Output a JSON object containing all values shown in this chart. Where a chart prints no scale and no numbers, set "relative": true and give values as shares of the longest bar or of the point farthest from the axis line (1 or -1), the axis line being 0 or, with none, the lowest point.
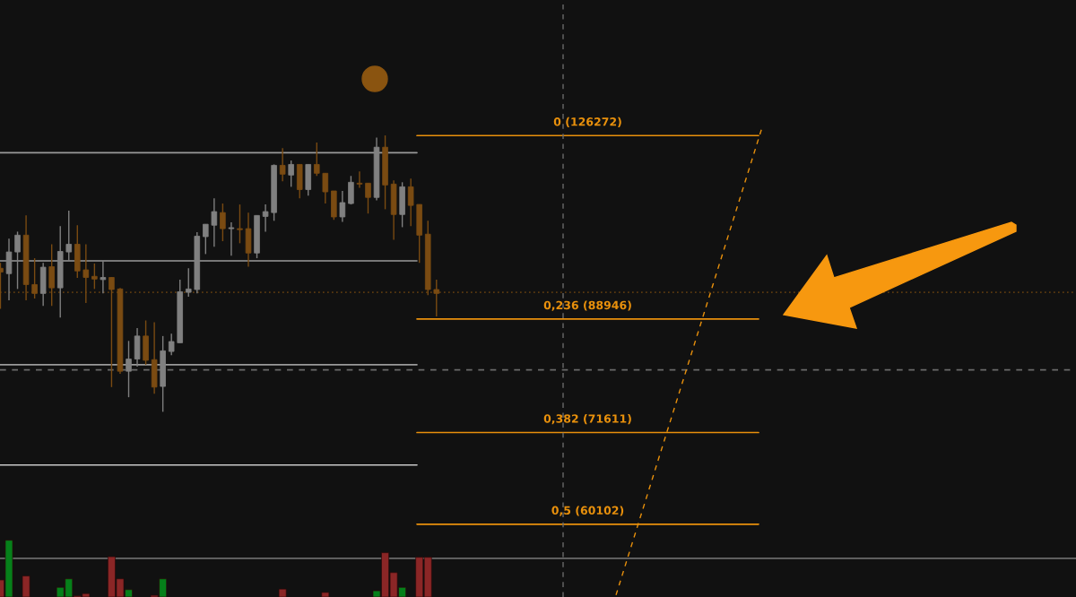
{
  "chart_data": [
    {
      "type": "candlestick",
      "log": true,
      "tick_labels": false,
      "grid": false,
      "ylim": [
        52300,
        163600
      ],
      "categories": [
        null,
        null,
        null,
        null,
        null,
        null,
        null,
        null,
        null,
        null,
        null,
        null,
        null,
        null,
        null,
        null,
        null,
        null,
        null,
        null,
        null,
        null,
        null,
        null,
        null,
        null,
        null,
        null,
        null,
        null,
        null,
        null,
        null,
        null,
        null,
        null,
        null,
        null,
        null,
        null,
        null,
        null,
        null,
        null,
        null,
        null,
        null,
        null,
        null,
        null,
        null,
        null,
        null,
        null,
        null,
        null,
        null,
        null,
        null,
        null,
        null,
        null,
        null,
        null,
        null,
        null,
        null,
        null,
        null,
        null,
        null,
        null,
        null,
        null,
        null,
        null,
        null,
        null,
        null,
        null,
        null,
        null,
        null,
        null,
        null,
        null,
        null,
        null,
        null,
        null,
        null,
        null,
        null,
        null,
        null,
        null,
        null,
        null,
        null,
        null,
        null,
        null,
        null,
        null,
        null,
        null,
        null,
        null,
        null,
        null,
        null,
        null,
        null,
        null,
        null,
        null,
        null,
        null,
        null,
        null,
        null,
        null,
        null,
        null,
        null,
        null
      ],
      "ohlc": [
        [
          98000,
          99000,
          90700,
          97300
        ],
        [
          97000,
          103700,
          92200,
          101100
        ],
        [
          101100,
          105100,
          94200,
          104400
        ],
        [
          104400,
          108400,
          92200,
          95000
        ],
        [
          95000,
          99900,
          92500,
          93400
        ],
        [
          93400,
          99000,
          91200,
          98200
        ],
        [
          98300,
          102600,
          91200,
          94400
        ],
        [
          94400,
          106200,
          89200,
          101200
        ],
        [
          101100,
          109400,
          99400,
          102600
        ],
        [
          102600,
          106400,
          96200,
          97500
        ],
        [
          97700,
          102600,
          91700,
          96300
        ],
        [
          96500,
          98900,
          94200,
          96000
        ],
        [
          95900,
          99400,
          93400,
          96300
        ],
        [
          96300,
          96300,
          78100,
          94100
        ],
        [
          94200,
          94400,
          80100,
          80500
        ],
        [
          80500,
          85300,
          76600,
          82400
        ],
        [
          82400,
          87400,
          81200,
          86100
        ],
        [
          86100,
          88700,
          81500,
          82200
        ],
        [
          82300,
          88400,
          77100,
          78100
        ],
        [
          78200,
          86100,
          74500,
          83700
        ],
        [
          83600,
          86500,
          83000,
          85200
        ],
        [
          85000,
          95900,
          85000,
          93700
        ],
        [
          93600,
          98000,
          92800,
          94200
        ],
        [
          94100,
          105000,
          93400,
          104200
        ],
        [
          104100,
          106600,
          100700,
          106600
        ],
        [
          106400,
          112000,
          102100,
          109200
        ],
        [
          109000,
          110900,
          103200,
          105700
        ],
        [
          105700,
          107000,
          100400,
          105900
        ],
        [
          105700,
          110700,
          102800,
          105500
        ],
        [
          105700,
          109000,
          98300,
          100900
        ],
        [
          100900,
          108400,
          99900,
          108400
        ],
        [
          108200,
          110700,
          105100,
          109200
        ],
        [
          109000,
          119500,
          107300,
          119300
        ],
        [
          119300,
          123300,
          115700,
          117300
        ],
        [
          117100,
          120400,
          114500,
          119500
        ],
        [
          119500,
          119500,
          112000,
          113900
        ],
        [
          113900,
          119500,
          112600,
          119500
        ],
        [
          119500,
          124600,
          116900,
          117500
        ],
        [
          117500,
          117500,
          110900,
          113400
        ],
        [
          113600,
          113600,
          107500,
          108100
        ],
        [
          108100,
          113600,
          107100,
          111100
        ],
        [
          110900,
          116900,
          110700,
          115500
        ],
        [
          115300,
          117900,
          114300,
          115100
        ],
        [
          115300,
          115300,
          108800,
          112200
        ],
        [
          112200,
          125800,
          111600,
          123500
        ],
        [
          123500,
          126300,
          109700,
          114900
        ],
        [
          115100,
          115900,
          103500,
          108600
        ],
        [
          108600,
          115500,
          106000,
          114500
        ],
        [
          114500,
          116300,
          106200,
          110500
        ],
        [
          110700,
          110700,
          99000,
          104400
        ],
        [
          104600,
          107300,
          93100,
          94100
        ],
        [
          94100,
          95900,
          89400,
          93400
        ],
        null,
        null,
        null,
        null,
        null,
        null,
        null,
        null,
        null,
        null,
        null,
        null,
        null,
        null,
        null,
        null,
        null,
        null,
        null,
        null,
        null,
        null,
        null,
        null,
        null,
        null,
        null,
        null,
        null,
        null,
        null,
        null,
        null,
        null,
        null,
        null,
        null,
        null,
        null,
        null,
        null,
        null,
        null,
        null,
        null,
        null,
        null,
        null,
        null,
        null,
        null,
        null,
        null,
        null,
        null,
        null,
        null,
        null,
        null,
        null,
        null,
        null,
        null,
        null,
        null,
        null,
        null,
        null,
        null,
        null,
        null,
        null,
        null,
        null
      ],
      "colors": [
        "#7a4b12",
        "#808080",
        "#808080",
        "#7a4b12",
        "#7a4b12",
        "#808080",
        "#7a4b12",
        "#808080",
        "#808080",
        "#7a4b12",
        "#7a4b12",
        "#7a4b12",
        "#808080",
        "#7a4b12",
        "#7a4b12",
        "#808080",
        "#808080",
        "#7a4b12",
        "#7a4b12",
        "#808080",
        "#808080",
        "#808080",
        "#808080",
        "#808080",
        "#808080",
        "#808080",
        "#7a4b12",
        "#808080",
        "#7a4b12",
        "#7a4b12",
        "#808080",
        "#808080",
        "#808080",
        "#7a4b12",
        "#808080",
        "#7a4b12",
        "#808080",
        "#7a4b12",
        "#7a4b12",
        "#7a4b12",
        "#808080",
        "#808080",
        "#7a4b12",
        "#7a4b12",
        "#808080",
        "#7a4b12",
        "#7a4b12",
        "#808080",
        "#7a4b12",
        "#7a4b12",
        "#7a4b12",
        "#7a4b12",
        null,
        null,
        null,
        null,
        null,
        null,
        null,
        null,
        null,
        null,
        null,
        null,
        null,
        null,
        null,
        null,
        null,
        null,
        null,
        null,
        null,
        null,
        null,
        null,
        null,
        null,
        null,
        null,
        null,
        null,
        null,
        null,
        null,
        null,
        null,
        null,
        null,
        null,
        null,
        null,
        null,
        null,
        null,
        null,
        null,
        null,
        null,
        null,
        null,
        null,
        null,
        null,
        null,
        null,
        null,
        null,
        null,
        null,
        null,
        null,
        null,
        null,
        null,
        null,
        null,
        null,
        null,
        null,
        null,
        null,
        null,
        null,
        null,
        null
      ],
      "series": [
        {
          "type": "line",
          "color": "#e8900c",
          "line_style": "dashed",
          "values": [
            null,
            null,
            null,
            null,
            null,
            null,
            null,
            null,
            null,
            null,
            null,
            null,
            null,
            null,
            null,
            null,
            null,
            null,
            null,
            null,
            null,
            null,
            null,
            null,
            null,
            null,
            null,
            null,
            null,
            null,
            null,
            null,
            null,
            null,
            null,
            null,
            null,
            null,
            null,
            null,
            null,
            null,
            null,
            null,
            null,
            null,
            null,
            null,
            null,
            null,
            null,
            null,
            null,
            null,
            null,
            null,
            null,
            null,
            null,
            null,
            null,
            null,
            null,
            null,
            null,
            null,
            null,
            null,
            null,
            null,
            null,
            null,
            52500,
            null,
            null,
            null,
            null,
            null,
            null,
            null,
            null,
            null,
            null,
            null,
            null,
            null,
            null,
            null,
            null,
            127700,
            null,
            null,
            null,
            null,
            null,
            null,
            null,
            null,
            null,
            null,
            null,
            null,
            null,
            null,
            null,
            null,
            null,
            null,
            null,
            null,
            null,
            null,
            null,
            null,
            null,
            null,
            null,
            null,
            null,
            null,
            null,
            null,
            null,
            null,
            null,
            null
          ]
        }
      ],
      "ref_lines": [
        {
          "axis": "y",
          "value": 126272,
          "label": "0 (126272)",
          "color": "#e8900c"
        },
        {
          "axis": "y",
          "value": 88946,
          "label": "0,236 (88946)",
          "color": "#e8900c"
        },
        {
          "axis": "y",
          "value": 71611,
          "label": "0,382 (71611)",
          "color": "#e8900c"
        },
        {
          "axis": "y",
          "value": 60102,
          "label": "0,5 (60102)",
          "color": "#e8900c"
        },
        {
          "axis": "y",
          "value": 122200,
          "color": "#9a9a9a"
        },
        {
          "axis": "y",
          "value": 99400,
          "color": "#9a9a9a"
        },
        {
          "axis": "y",
          "value": 81500,
          "color": "#9a9a9a"
        },
        {
          "axis": "y",
          "value": 67300,
          "color": "#c8c8c8"
        },
        {
          "axis": "y",
          "value": 93600,
          "color": "#5a3a10",
          "line_style": "dotted"
        },
        {
          "axis": "y",
          "value": 80700,
          "color": "#6a6a6a",
          "line_style": "dashed"
        }
      ]
    },
    {
      "type": "bar",
      "relative": true,
      "categories": [
        null,
        null,
        null,
        null,
        null,
        null,
        null,
        null,
        null,
        null,
        null,
        null,
        null,
        null,
        null,
        null,
        null,
        null,
        null,
        null,
        null,
        null,
        null,
        null,
        null,
        null,
        null,
        null,
        null,
        null,
        null,
        null,
        null,
        null,
        null,
        null,
        null,
        null,
        null,
        null,
        null,
        null,
        null,
        null,
        null,
        null,
        null,
        null,
        null,
        null,
        null,
        null,
        null,
        null,
        null,
        null,
        null,
        null,
        null,
        null,
        null,
        null,
        null,
        null,
        null,
        null,
        null,
        null,
        null,
        null,
        null,
        null,
        null,
        null,
        null,
        null,
        null,
        null,
        null,
        null,
        null,
        null,
        null,
        null,
        null,
        null,
        null,
        null,
        null,
        null,
        null,
        null,
        null,
        null,
        null,
        null,
        null,
        null,
        null,
        null,
        null,
        null,
        null,
        null,
        null,
        null,
        null,
        null,
        null,
        null,
        null,
        null,
        null,
        null,
        null,
        null,
        null,
        null,
        null,
        null,
        null,
        null,
        null,
        null,
        null,
        null
      ],
      "values": [
        0.3,
        1,
        null,
        0.37,
        null,
        null,
        null,
        0.17,
        0.32,
        0.02,
        0.06,
        null,
        null,
        0.71,
        0.32,
        0.13,
        null,
        null,
        0.03,
        0.32,
        null,
        null,
        null,
        null,
        null,
        null,
        null,
        null,
        null,
        null,
        null,
        null,
        null,
        0.14,
        null,
        null,
        null,
        null,
        0.08,
        null,
        null,
        null,
        null,
        null,
        0.11,
        0.78,
        0.43,
        0.17,
        null,
        0.7,
        0.7,
        null,
        null,
        null,
        null,
        null,
        null,
        null,
        null,
        null,
        null,
        null,
        null,
        null,
        null,
        null,
        null,
        null,
        null,
        null,
        null,
        null,
        null,
        null,
        null,
        null,
        null,
        null,
        null,
        null,
        null,
        null,
        null,
        null,
        null,
        null,
        null,
        null,
        null,
        null,
        null,
        null,
        null,
        null,
        null,
        null,
        null,
        null,
        null,
        null,
        null,
        null,
        null,
        null,
        null,
        null,
        null,
        null,
        null,
        null,
        null,
        null,
        null,
        null,
        null,
        null,
        null,
        null,
        null,
        null,
        null,
        null,
        null,
        null,
        null,
        null
      ],
      "colors": [
        "#8b2626",
        "#05801a",
        null,
        "#8b2626",
        null,
        null,
        null,
        "#05801a",
        "#05801a",
        "#8b2626",
        "#8b2626",
        null,
        null,
        "#8b2626",
        "#8b2626",
        "#05801a",
        null,
        null,
        "#8b2626",
        "#05801a",
        null,
        null,
        null,
        null,
        null,
        null,
        null,
        null,
        null,
        null,
        null,
        null,
        null,
        "#8b2626",
        null,
        null,
        null,
        null,
        "#8b2626",
        null,
        null,
        null,
        null,
        null,
        "#05801a",
        "#8b2626",
        "#8b2626",
        "#05801a",
        null,
        "#8b2626",
        "#8b2626",
        null,
        null,
        null,
        null,
        null,
        null,
        null,
        null,
        null,
        null,
        null,
        null,
        null,
        null,
        null,
        null,
        null,
        null,
        null,
        null,
        null,
        null,
        null,
        null,
        null,
        null,
        null,
        null,
        null,
        null,
        null,
        null,
        null,
        null,
        null,
        null,
        null,
        null,
        null,
        null,
        null,
        null,
        null,
        null,
        null,
        null,
        null,
        null,
        null,
        null,
        null,
        null,
        null,
        null,
        null,
        null,
        null,
        null,
        null,
        null,
        null,
        null,
        null,
        null,
        null,
        null,
        null,
        null,
        null,
        null,
        null,
        null,
        null,
        null,
        null
      ],
      "ref_lines": [
        {
          "axis": "y",
          "value": 0.68,
          "color": "#6a6a6a"
        }
      ]
    }
  ]
}
